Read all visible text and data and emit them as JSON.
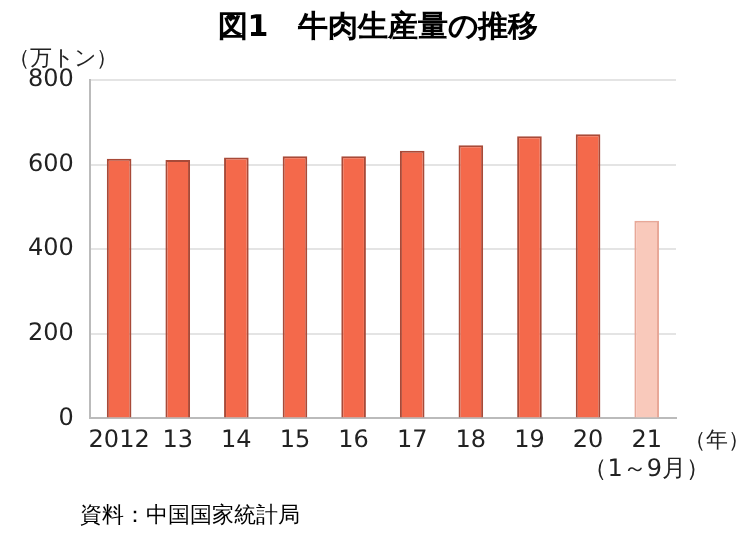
{
  "chart_data": {
    "type": "bar",
    "title": "図1　牛肉生産量の推移",
    "ylabel": "（万トン）",
    "xlabel": "（年）",
    "categories": [
      "2012",
      "13",
      "14",
      "15",
      "16",
      "17",
      "18",
      "19",
      "20",
      "21\n（1～9月）"
    ],
    "values": [
      614,
      611,
      617,
      620,
      620,
      633,
      646,
      667,
      672,
      467
    ],
    "colors": [
      "#f4694b",
      "#f4694b",
      "#f4694b",
      "#f4694b",
      "#f4694b",
      "#f4694b",
      "#f4694b",
      "#f4694b",
      "#f4694b",
      "#f9c9bb"
    ],
    "ylim": [
      0,
      800
    ],
    "yticks": [
      0,
      200,
      400,
      600,
      800
    ],
    "grid": "y",
    "annotations": [
      "資料：中国国家統計局"
    ]
  }
}
